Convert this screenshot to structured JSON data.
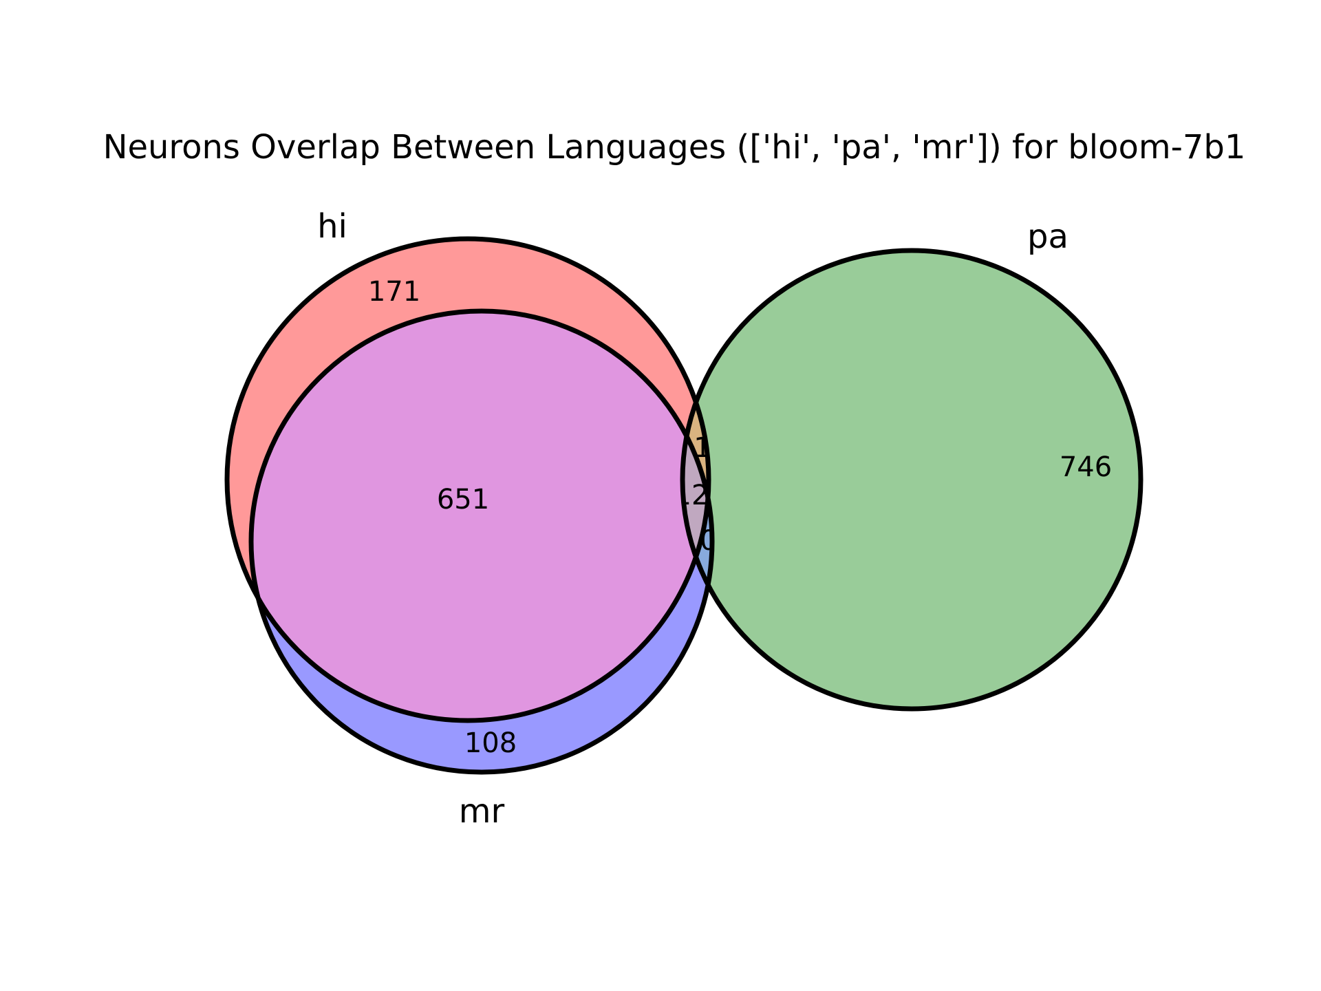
{
  "title": "Neurons Overlap Between Languages (['hi', 'pa', 'mr']) for bloom-7b1",
  "sets": [
    {
      "id": "hi",
      "label": "hi"
    },
    {
      "id": "pa",
      "label": "pa"
    },
    {
      "id": "mr",
      "label": "mr"
    }
  ],
  "regions": {
    "hi_only": "171",
    "pa_only": "746",
    "mr_only": "108",
    "hi_mr": "651",
    "hi_pa": "1",
    "hi_pa_mr": "12",
    "pa_mr": "0"
  },
  "colors": {
    "hi_only": "#ff9999",
    "pa_only": "#99cc99",
    "mr_only": "#9999ff",
    "hi_mr": "#e096e0",
    "hi_pa": "#d9b380",
    "hi_pa_mr": "#c0a8c0",
    "pa_mr": "#88aadd",
    "outline": "#000000"
  }
}
